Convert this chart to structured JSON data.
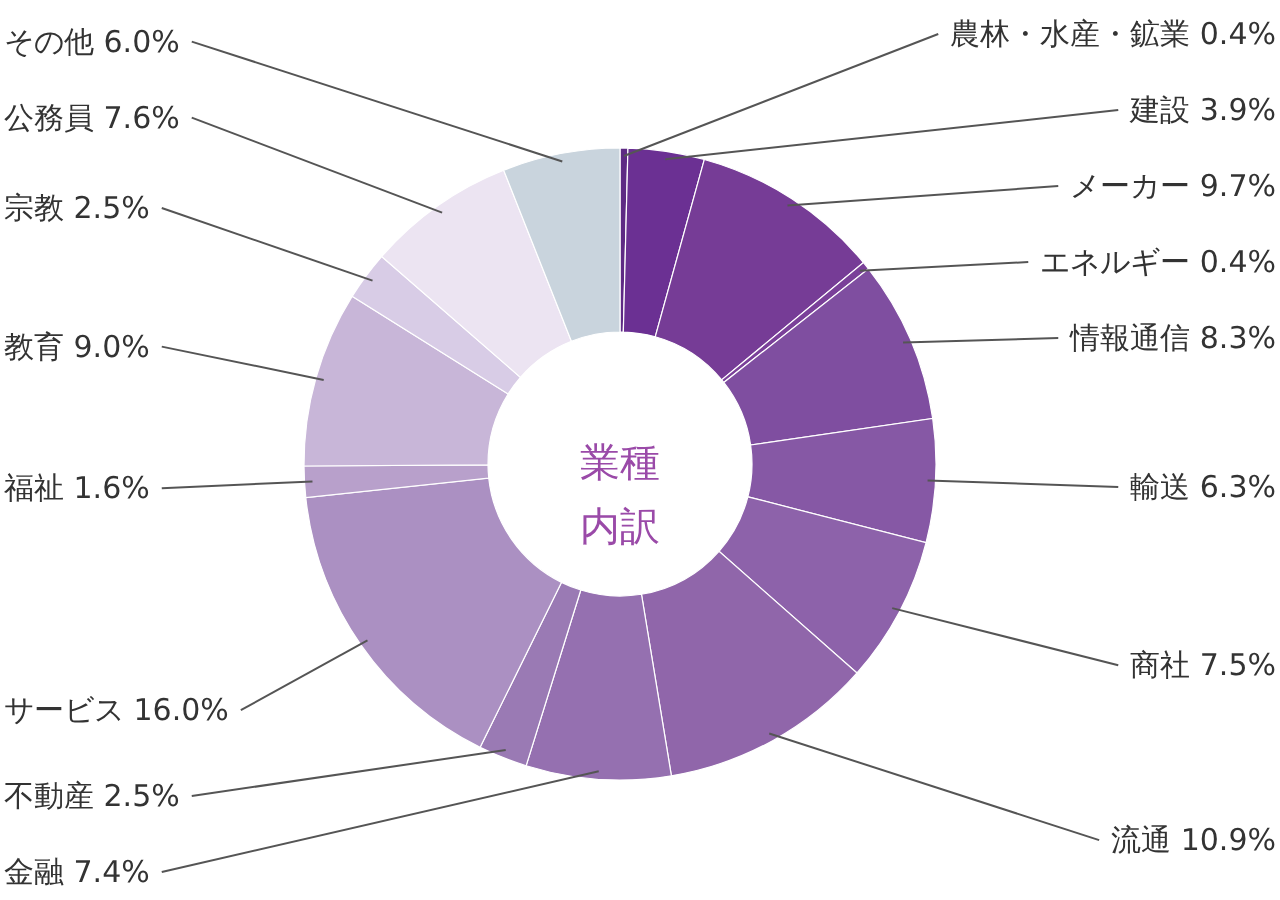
{
  "chart_data": {
    "type": "donut",
    "title": "業種内訳",
    "categories": [
      "農林・水産・鉱業",
      "建設",
      "メーカー",
      "エネルギー",
      "情報通信",
      "輸送",
      "商社",
      "流通",
      "金融",
      "不動産",
      "サービス",
      "福祉",
      "教育",
      "宗教",
      "公務員",
      "その他"
    ],
    "values": [
      0.4,
      3.9,
      9.7,
      0.4,
      8.3,
      6.3,
      7.5,
      10.9,
      7.4,
      2.5,
      16.0,
      1.6,
      9.0,
      2.5,
      7.6,
      6.0
    ],
    "value_labels": [
      "0.4%",
      "3.9%",
      "9.7%",
      "0.4%",
      "8.3%",
      "6.3%",
      "7.5%",
      "10.9%",
      "7.4%",
      "2.5%",
      "16.0%",
      "1.6%",
      "9.0%",
      "2.5%",
      "7.6%",
      "6.0%"
    ],
    "colors": [
      "#5e2a84",
      "#6b3093",
      "#763c96",
      "#7a4099",
      "#7f4ea0",
      "#8658a5",
      "#8d62aa",
      "#9066aa",
      "#9570b0",
      "#9a7ab4",
      "#ab90c2",
      "#b8a0cb",
      "#c8b6d8",
      "#d8cce6",
      "#ece4f2",
      "#c9d4dd"
    ]
  }
}
